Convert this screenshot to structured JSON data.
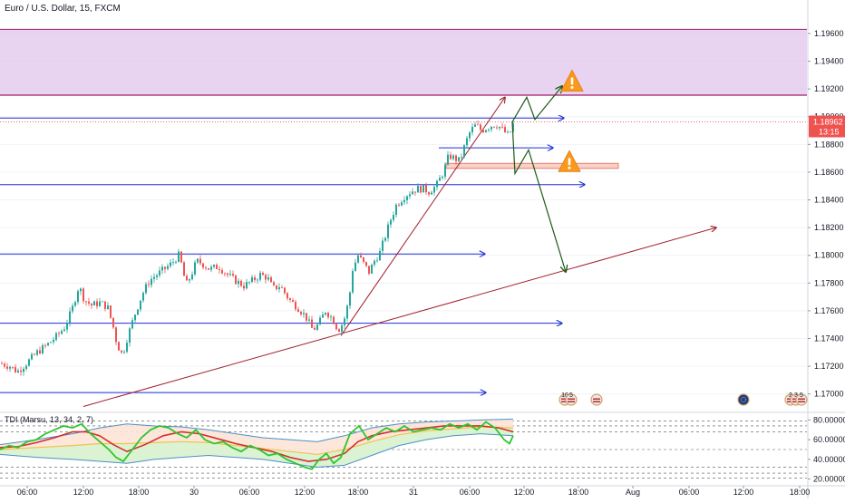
{
  "header": {
    "symbol_title": "Euro / U.S. Dollar, 15, FXCM"
  },
  "indicator": {
    "title": "TDI (Marsu, 13, 34, 2, 7)"
  },
  "colors": {
    "up": "#26a69a",
    "down": "#ef5350",
    "hline": "#1f2fd8",
    "trend": "#a2202a",
    "zone": "#e0c4ec",
    "zone_border": "#9e1d6a",
    "price_badge": "#ef5350",
    "arrow": "#1e5a16",
    "warning": "#f89a1c"
  },
  "chart_data": [
    {
      "type": "candlestick",
      "title": "Euro / U.S. Dollar, 15, FXCM",
      "ylim": [
        1.169,
        1.1975
      ],
      "y_ticks": [
        "1.19600",
        "1.19400",
        "1.19200",
        "1.19000",
        "1.18800",
        "1.18600",
        "1.18400",
        "1.18200",
        "1.18000",
        "1.17800",
        "1.17600",
        "1.17400",
        "1.17200",
        "1.17000"
      ],
      "x_ticks": [
        "06:00",
        "12:00",
        "18:00",
        "30",
        "06:00",
        "12:00",
        "18:00",
        "31",
        "06:00",
        "12:00",
        "18:00",
        "Aug",
        "06:00",
        "12:00",
        "18:00"
      ],
      "last_price": "1.18962",
      "countdown": "13:15",
      "candle_path": [
        [
          0,
          1.1722
        ],
        [
          10,
          1.172
        ],
        [
          18,
          1.1716
        ],
        [
          28,
          1.1722
        ],
        [
          40,
          1.173
        ],
        [
          52,
          1.1736
        ],
        [
          62,
          1.1742
        ],
        [
          70,
          1.1748
        ],
        [
          78,
          1.176
        ],
        [
          86,
          1.1778
        ],
        [
          92,
          1.1768
        ],
        [
          100,
          1.1764
        ],
        [
          110,
          1.1766
        ],
        [
          118,
          1.1762
        ],
        [
          124,
          1.1748
        ],
        [
          128,
          1.1736
        ],
        [
          134,
          1.1728
        ],
        [
          140,
          1.1742
        ],
        [
          148,
          1.1758
        ],
        [
          156,
          1.1772
        ],
        [
          164,
          1.1782
        ],
        [
          172,
          1.1786
        ],
        [
          180,
          1.179
        ],
        [
          188,
          1.1794
        ],
        [
          196,
          1.18
        ],
        [
          200,
          1.1792
        ],
        [
          204,
          1.1778
        ],
        [
          210,
          1.1786
        ],
        [
          216,
          1.1796
        ],
        [
          222,
          1.1794
        ],
        [
          230,
          1.179
        ],
        [
          240,
          1.1792
        ],
        [
          250,
          1.1786
        ],
        [
          258,
          1.1782
        ],
        [
          268,
          1.1778
        ],
        [
          278,
          1.1782
        ],
        [
          286,
          1.1786
        ],
        [
          294,
          1.1784
        ],
        [
          300,
          1.1776
        ],
        [
          308,
          1.1778
        ],
        [
          318,
          1.1768
        ],
        [
          328,
          1.1762
        ],
        [
          336,
          1.1756
        ],
        [
          344,
          1.1746
        ],
        [
          350,
          1.175
        ],
        [
          358,
          1.176
        ],
        [
          366,
          1.1754
        ],
        [
          372,
          1.1746
        ],
        [
          378,
          1.1752
        ],
        [
          384,
          1.1768
        ],
        [
          388,
          1.179
        ],
        [
          394,
          1.18
        ],
        [
          400,
          1.1794
        ],
        [
          406,
          1.1788
        ],
        [
          412,
          1.1796
        ],
        [
          418,
          1.1802
        ],
        [
          424,
          1.1814
        ],
        [
          430,
          1.1826
        ],
        [
          436,
          1.1836
        ],
        [
          444,
          1.1842
        ],
        [
          452,
          1.1846
        ],
        [
          460,
          1.1848
        ],
        [
          466,
          1.1848
        ],
        [
          472,
          1.1846
        ],
        [
          480,
          1.185
        ],
        [
          488,
          1.186
        ],
        [
          494,
          1.1872
        ],
        [
          500,
          1.187
        ],
        [
          506,
          1.1868
        ],
        [
          512,
          1.188
        ],
        [
          518,
          1.189
        ],
        [
          524,
          1.1894
        ],
        [
          530,
          1.189
        ],
        [
          536,
          1.1892
        ],
        [
          542,
          1.1894
        ],
        [
          548,
          1.1894
        ],
        [
          554,
          1.189
        ],
        [
          560,
          1.1886
        ],
        [
          566,
          1.1896
        ]
      ],
      "horizontal_levels": [
        {
          "y": 1.1899,
          "x_end": 622
        },
        {
          "y": 1.18775,
          "x_end": 610
        },
        {
          "y": 1.1851,
          "x_end": 645
        },
        {
          "y": 1.1801,
          "x_end": 535
        },
        {
          "y": 1.1751,
          "x_end": 620
        },
        {
          "y": 1.1701,
          "x_end": 536
        }
      ],
      "supply_zone": {
        "y_top": 1.1963,
        "y_bottom": 1.19155
      },
      "small_zone": {
        "y_top": 1.18663,
        "y_bottom": 1.18627,
        "x_start": 492,
        "x_end": 682
      },
      "trend_lines": [
        {
          "x0": 92,
          "y0": 1.1691,
          "x1": 790,
          "y1": 1.182
        },
        {
          "x0": 376,
          "y0": 1.1742,
          "x1": 557,
          "y1": 1.1914
        }
      ],
      "projection_up": [
        [
          565,
          1.18962
        ],
        [
          581,
          1.1914
        ],
        [
          590,
          1.1898
        ],
        [
          620,
          1.1922
        ]
      ],
      "projection_down": [
        [
          565,
          1.18962
        ],
        [
          568,
          1.1859
        ],
        [
          583,
          1.1876
        ],
        [
          624,
          1.1788
        ]
      ],
      "warnings": [
        {
          "x": 631,
          "y": 1.1925
        },
        {
          "x": 628,
          "y": 1.1867
        }
      ],
      "event_markers": [
        {
          "x": 623,
          "kind": "us",
          "label": "10"
        },
        {
          "x": 630,
          "kind": "us",
          "label": "5"
        },
        {
          "x": 658,
          "kind": "us",
          "label": ""
        },
        {
          "x": 820,
          "kind": "eu",
          "label": ""
        },
        {
          "x": 872,
          "kind": "us",
          "label": "2"
        },
        {
          "x": 878,
          "kind": "us",
          "label": "3"
        },
        {
          "x": 884,
          "kind": "us",
          "label": "5"
        }
      ]
    },
    {
      "type": "line",
      "title": "TDI (Marsu, 13, 34, 2, 7)",
      "ylim": [
        15,
        85
      ],
      "y_ticks": [
        "80.00000",
        "60.00000",
        "40.00000",
        "20.00000"
      ],
      "level_lines": [
        79,
        74,
        68,
        50,
        32,
        26,
        21
      ],
      "series": [
        {
          "role": "band_upper",
          "points": [
            [
              0,
              55
            ],
            [
              40,
              60
            ],
            [
              80,
              66
            ],
            [
              110,
              72
            ],
            [
              140,
              76
            ],
            [
              170,
              74
            ],
            [
              200,
              73
            ],
            [
              230,
              70
            ],
            [
              260,
              66
            ],
            [
              290,
              62
            ],
            [
              320,
              60
            ],
            [
              350,
              58
            ],
            [
              380,
              64
            ],
            [
              410,
              72
            ],
            [
              440,
              76
            ],
            [
              470,
              78
            ],
            [
              500,
              79
            ],
            [
              530,
              80
            ],
            [
              566,
              81
            ]
          ]
        },
        {
          "role": "band_lower",
          "points": [
            [
              0,
              45
            ],
            [
              40,
              42
            ],
            [
              80,
              40
            ],
            [
              110,
              38
            ],
            [
              140,
              36
            ],
            [
              170,
              40
            ],
            [
              200,
              42
            ],
            [
              230,
              44
            ],
            [
              260,
              42
            ],
            [
              290,
              40
            ],
            [
              320,
              36
            ],
            [
              350,
              32
            ],
            [
              380,
              34
            ],
            [
              410,
              44
            ],
            [
              440,
              54
            ],
            [
              470,
              60
            ],
            [
              500,
              64
            ],
            [
              530,
              66
            ],
            [
              566,
              64
            ]
          ]
        },
        {
          "role": "band_mid",
          "points": [
            [
              0,
              50
            ],
            [
              40,
              52
            ],
            [
              80,
              54
            ],
            [
              110,
              56
            ],
            [
              140,
              56
            ],
            [
              170,
              57
            ],
            [
              200,
              58
            ],
            [
              230,
              57
            ],
            [
              260,
              54
            ],
            [
              290,
              51
            ],
            [
              320,
              48
            ],
            [
              350,
              45
            ],
            [
              380,
              50
            ],
            [
              410,
              58
            ],
            [
              440,
              65
            ],
            [
              470,
              69
            ],
            [
              500,
              71
            ],
            [
              530,
              73
            ],
            [
              566,
              72
            ]
          ]
        },
        {
          "role": "signal",
          "points": [
            [
              0,
              52
            ],
            [
              20,
              53
            ],
            [
              40,
              57
            ],
            [
              60,
              62
            ],
            [
              80,
              68
            ],
            [
              95,
              68
            ],
            [
              110,
              64
            ],
            [
              125,
              55
            ],
            [
              140,
              48
            ],
            [
              160,
              55
            ],
            [
              180,
              64
            ],
            [
              200,
              68
            ],
            [
              220,
              66
            ],
            [
              240,
              61
            ],
            [
              260,
              56
            ],
            [
              280,
              52
            ],
            [
              300,
              48
            ],
            [
              320,
              42
            ],
            [
              340,
              38
            ],
            [
              360,
              40
            ],
            [
              380,
              46
            ],
            [
              395,
              58
            ],
            [
              410,
              64
            ],
            [
              430,
              68
            ],
            [
              450,
              70
            ],
            [
              470,
              72
            ],
            [
              490,
              74
            ],
            [
              510,
              74
            ],
            [
              530,
              74
            ],
            [
              550,
              72
            ],
            [
              566,
              68
            ]
          ]
        },
        {
          "role": "rsi",
          "points": [
            [
              0,
              50
            ],
            [
              10,
              54
            ],
            [
              20,
              52
            ],
            [
              30,
              58
            ],
            [
              40,
              60
            ],
            [
              50,
              66
            ],
            [
              60,
              70
            ],
            [
              70,
              74
            ],
            [
              80,
              72
            ],
            [
              90,
              76
            ],
            [
              100,
              66
            ],
            [
              110,
              58
            ],
            [
              120,
              50
            ],
            [
              128,
              42
            ],
            [
              136,
              38
            ],
            [
              146,
              50
            ],
            [
              156,
              62
            ],
            [
              166,
              70
            ],
            [
              176,
              74
            ],
            [
              186,
              72
            ],
            [
              196,
              66
            ],
            [
              206,
              62
            ],
            [
              216,
              70
            ],
            [
              226,
              60
            ],
            [
              236,
              56
            ],
            [
              246,
              58
            ],
            [
              256,
              52
            ],
            [
              266,
              48
            ],
            [
              276,
              54
            ],
            [
              286,
              50
            ],
            [
              296,
              44
            ],
            [
              306,
              46
            ],
            [
              316,
              40
            ],
            [
              326,
              36
            ],
            [
              336,
              32
            ],
            [
              344,
              30
            ],
            [
              352,
              40
            ],
            [
              360,
              46
            ],
            [
              368,
              36
            ],
            [
              376,
              42
            ],
            [
              386,
              66
            ],
            [
              396,
              74
            ],
            [
              406,
              60
            ],
            [
              416,
              66
            ],
            [
              426,
              72
            ],
            [
              436,
              68
            ],
            [
              446,
              74
            ],
            [
              456,
              68
            ],
            [
              466,
              70
            ],
            [
              476,
              72
            ],
            [
              486,
              70
            ],
            [
              496,
              76
            ],
            [
              506,
              72
            ],
            [
              516,
              76
            ],
            [
              526,
              70
            ],
            [
              536,
              78
            ],
            [
              546,
              72
            ],
            [
              556,
              60
            ],
            [
              562,
              56
            ],
            [
              566,
              64
            ]
          ]
        }
      ]
    }
  ]
}
